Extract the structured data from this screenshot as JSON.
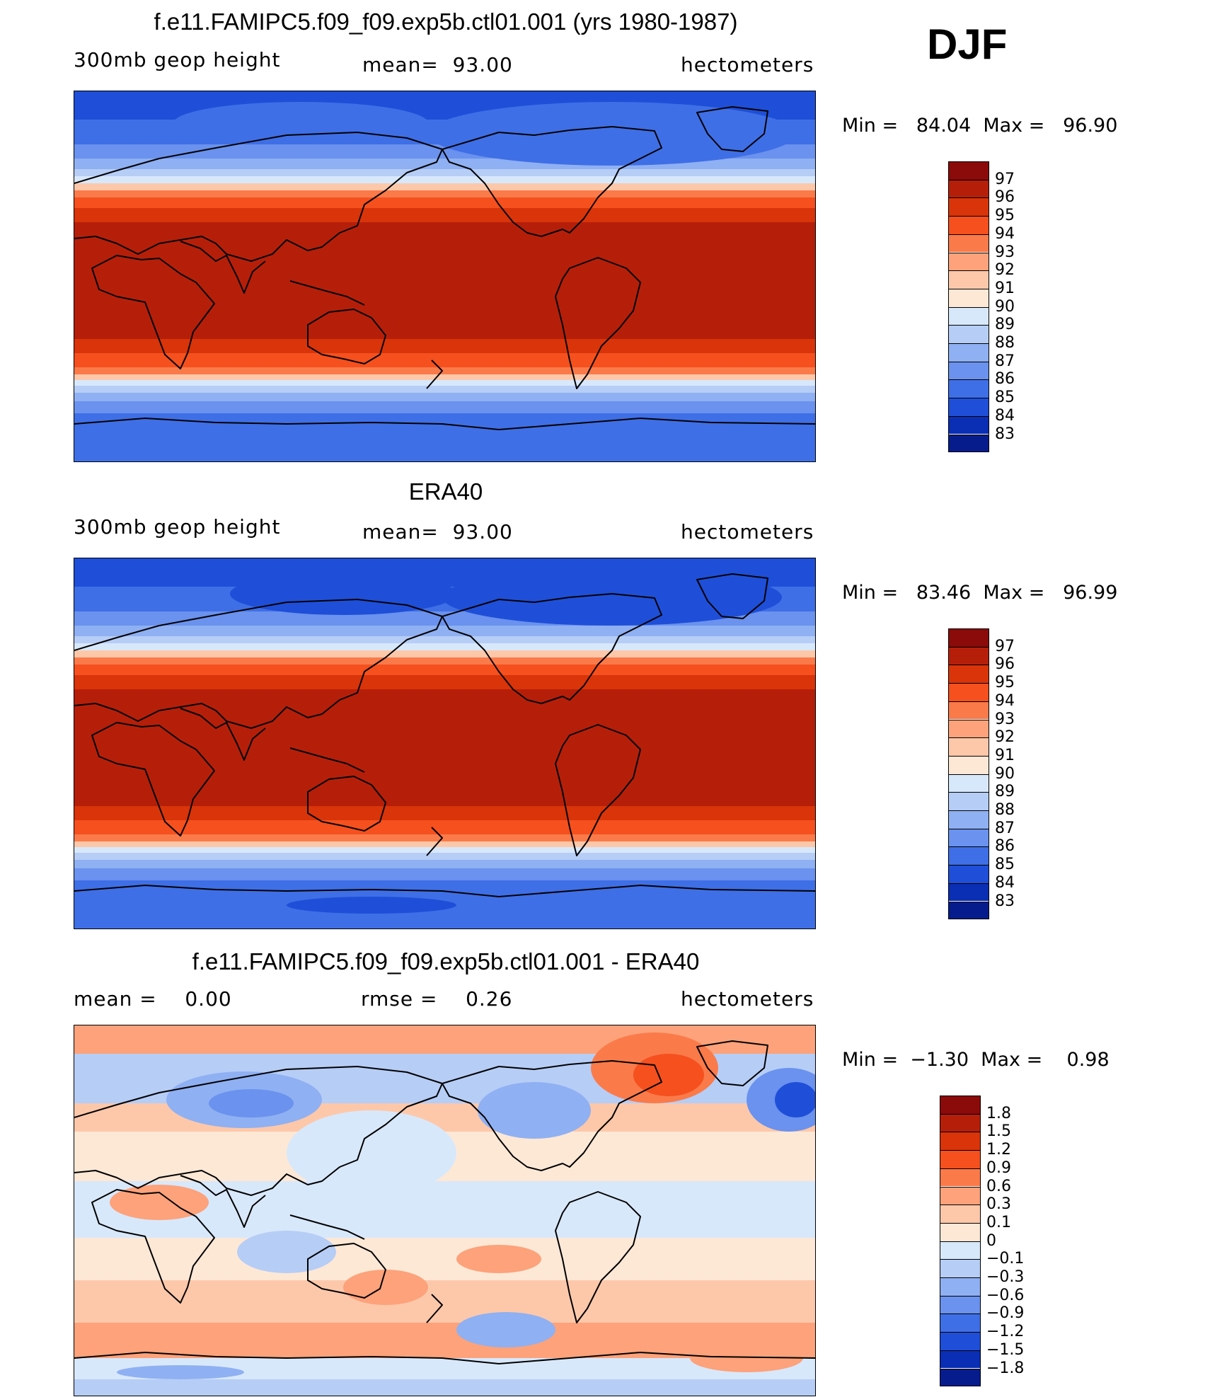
{
  "season": "DJF",
  "panels": [
    {
      "title": "f.e11.FAMIPC5.f09_f09.exp5b.ctl01.001 (yrs 1980-1987)",
      "variable": "300mb geop height",
      "stat": "mean=  93.00",
      "units": "hectometers",
      "minmax": "Min =   84.04  Max =   96.90",
      "colorbar": {
        "labels": [
          "97",
          "96",
          "95",
          "94",
          "93",
          "92",
          "91",
          "90",
          "89",
          "88",
          "87",
          "86",
          "85",
          "84",
          "83"
        ],
        "colors": [
          "#8b0a0a",
          "#b51f0a",
          "#d9340a",
          "#f5501e",
          "#fb7a4a",
          "#fda27a",
          "#fdc8aa",
          "#fde8d6",
          "#d8e8fb",
          "#b6cdf6",
          "#8fb0f2",
          "#6a92ee",
          "#3f6fe6",
          "#1f4fd8",
          "#0a2eb4",
          "#061c8c"
        ]
      }
    },
    {
      "title": "ERA40",
      "variable": "300mb geop height",
      "stat": "mean=  93.00",
      "units": "hectometers",
      "minmax": "Min =   83.46  Max =   96.99",
      "colorbar": {
        "labels": [
          "97",
          "96",
          "95",
          "94",
          "93",
          "92",
          "91",
          "90",
          "89",
          "88",
          "87",
          "86",
          "85",
          "84",
          "83"
        ],
        "colors": [
          "#8b0a0a",
          "#b51f0a",
          "#d9340a",
          "#f5501e",
          "#fb7a4a",
          "#fda27a",
          "#fdc8aa",
          "#fde8d6",
          "#d8e8fb",
          "#b6cdf6",
          "#8fb0f2",
          "#6a92ee",
          "#3f6fe6",
          "#1f4fd8",
          "#0a2eb4",
          "#061c8c"
        ]
      }
    },
    {
      "title": "f.e11.FAMIPC5.f09_f09.exp5b.ctl01.001 - ERA40",
      "variable": "mean =    0.00",
      "stat": "rmse =    0.26",
      "units": "hectometers",
      "minmax": "Min =  −1.30  Max =    0.98",
      "colorbar": {
        "labels": [
          "1.8",
          "1.5",
          "1.2",
          "0.9",
          "0.6",
          "0.3",
          "0.1",
          "0",
          "−0.1",
          "−0.3",
          "−0.6",
          "−0.9",
          "−1.2",
          "−1.5",
          "−1.8"
        ],
        "colors": [
          "#8b0a0a",
          "#b51f0a",
          "#d9340a",
          "#f5501e",
          "#fb7a4a",
          "#fda27a",
          "#fdc8aa",
          "#fde8d6",
          "#d8e8fb",
          "#b6cdf6",
          "#8fb0f2",
          "#6a92ee",
          "#3f6fe6",
          "#1f4fd8",
          "#0a2eb4",
          "#061c8c"
        ]
      }
    }
  ]
}
